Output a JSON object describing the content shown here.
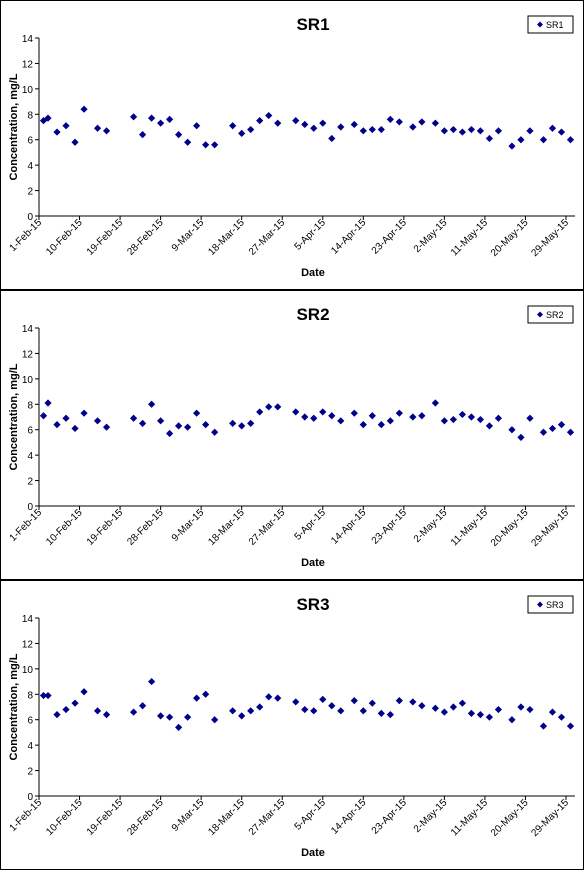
{
  "chart_data": [
    {
      "type": "scatter",
      "title": "SR1",
      "xlabel": "Date",
      "ylabel": "Concentration, mg/L",
      "ylim": [
        0,
        14
      ],
      "yticks": [
        0,
        2,
        4,
        6,
        8,
        10,
        12,
        14
      ],
      "xlim": [
        "2015-02-01",
        "2015-05-31"
      ],
      "xtick_labels": [
        "1-Feb-15",
        "10-Feb-15",
        "19-Feb-15",
        "28-Feb-15",
        "9-Mar-15",
        "18-Mar-15",
        "27-Mar-15",
        "5-Apr-15",
        "14-Apr-15",
        "23-Apr-15",
        "2-May-15",
        "11-May-15",
        "20-May-15",
        "29-May-15"
      ],
      "xtick_dates": [
        "2015-02-01",
        "2015-02-10",
        "2015-02-19",
        "2015-02-28",
        "2015-03-09",
        "2015-03-18",
        "2015-03-27",
        "2015-04-05",
        "2015-04-14",
        "2015-04-23",
        "2015-05-02",
        "2015-05-11",
        "2015-05-20",
        "2015-05-29"
      ],
      "legend": "top-right",
      "marker_color": "#00008B",
      "series": [
        {
          "name": "SR1",
          "x": [
            "2015-02-02",
            "2015-02-03",
            "2015-02-05",
            "2015-02-07",
            "2015-02-09",
            "2015-02-11",
            "2015-02-14",
            "2015-02-16",
            "2015-02-22",
            "2015-02-24",
            "2015-02-26",
            "2015-02-28",
            "2015-03-02",
            "2015-03-04",
            "2015-03-06",
            "2015-03-08",
            "2015-03-10",
            "2015-03-12",
            "2015-03-16",
            "2015-03-18",
            "2015-03-20",
            "2015-03-22",
            "2015-03-24",
            "2015-03-26",
            "2015-03-30",
            "2015-04-01",
            "2015-04-03",
            "2015-04-05",
            "2015-04-07",
            "2015-04-09",
            "2015-04-12",
            "2015-04-14",
            "2015-04-16",
            "2015-04-18",
            "2015-04-20",
            "2015-04-22",
            "2015-04-25",
            "2015-04-27",
            "2015-04-30",
            "2015-05-02",
            "2015-05-04",
            "2015-05-06",
            "2015-05-08",
            "2015-05-10",
            "2015-05-12",
            "2015-05-14",
            "2015-05-17",
            "2015-05-19",
            "2015-05-21",
            "2015-05-24",
            "2015-05-26",
            "2015-05-28",
            "2015-05-30"
          ],
          "values": [
            7.5,
            7.7,
            6.6,
            7.1,
            5.8,
            8.4,
            6.9,
            6.7,
            7.8,
            6.4,
            7.7,
            7.3,
            7.6,
            6.4,
            5.8,
            7.1,
            5.6,
            5.6,
            7.1,
            6.5,
            6.8,
            7.5,
            7.9,
            7.3,
            7.5,
            7.2,
            6.9,
            7.3,
            6.1,
            7.0,
            7.2,
            6.7,
            6.8,
            6.8,
            7.6,
            7.4,
            7.0,
            7.4,
            7.3,
            6.7,
            6.8,
            6.6,
            6.8,
            6.7,
            6.1,
            6.7,
            5.5,
            6.0,
            6.7,
            6.0,
            6.9,
            6.6,
            6.0
          ]
        }
      ]
    },
    {
      "type": "scatter",
      "title": "SR2",
      "xlabel": "Date",
      "ylabel": "Concentration, mg/L",
      "ylim": [
        0,
        14
      ],
      "yticks": [
        0,
        2,
        4,
        6,
        8,
        10,
        12,
        14
      ],
      "xlim": [
        "2015-02-01",
        "2015-05-31"
      ],
      "xtick_labels": [
        "1-Feb-15",
        "10-Feb-15",
        "19-Feb-15",
        "28-Feb-15",
        "9-Mar-15",
        "18-Mar-15",
        "27-Mar-15",
        "5-Apr-15",
        "14-Apr-15",
        "23-Apr-15",
        "2-May-15",
        "11-May-15",
        "20-May-15",
        "29-May-15"
      ],
      "xtick_dates": [
        "2015-02-01",
        "2015-02-10",
        "2015-02-19",
        "2015-02-28",
        "2015-03-09",
        "2015-03-18",
        "2015-03-27",
        "2015-04-05",
        "2015-04-14",
        "2015-04-23",
        "2015-05-02",
        "2015-05-11",
        "2015-05-20",
        "2015-05-29"
      ],
      "legend": "top-right",
      "marker_color": "#00008B",
      "series": [
        {
          "name": "SR2",
          "x": [
            "2015-02-02",
            "2015-02-03",
            "2015-02-05",
            "2015-02-07",
            "2015-02-09",
            "2015-02-11",
            "2015-02-14",
            "2015-02-16",
            "2015-02-22",
            "2015-02-24",
            "2015-02-26",
            "2015-02-28",
            "2015-03-02",
            "2015-03-04",
            "2015-03-06",
            "2015-03-08",
            "2015-03-10",
            "2015-03-12",
            "2015-03-16",
            "2015-03-18",
            "2015-03-20",
            "2015-03-22",
            "2015-03-24",
            "2015-03-26",
            "2015-03-30",
            "2015-04-01",
            "2015-04-03",
            "2015-04-05",
            "2015-04-07",
            "2015-04-09",
            "2015-04-12",
            "2015-04-14",
            "2015-04-16",
            "2015-04-18",
            "2015-04-20",
            "2015-04-22",
            "2015-04-25",
            "2015-04-27",
            "2015-04-30",
            "2015-05-02",
            "2015-05-04",
            "2015-05-06",
            "2015-05-08",
            "2015-05-10",
            "2015-05-12",
            "2015-05-14",
            "2015-05-17",
            "2015-05-19",
            "2015-05-21",
            "2015-05-24",
            "2015-05-26",
            "2015-05-28",
            "2015-05-30"
          ],
          "values": [
            7.1,
            8.1,
            6.4,
            6.9,
            6.1,
            7.3,
            6.7,
            6.2,
            6.9,
            6.5,
            8.0,
            6.7,
            5.7,
            6.3,
            6.2,
            7.3,
            6.4,
            5.8,
            6.5,
            6.3,
            6.5,
            7.4,
            7.8,
            7.8,
            7.4,
            7.0,
            6.9,
            7.4,
            7.1,
            6.7,
            7.3,
            6.4,
            7.1,
            6.4,
            6.7,
            7.3,
            7.0,
            7.1,
            8.1,
            6.7,
            6.8,
            7.2,
            7.0,
            6.8,
            6.3,
            6.9,
            6.0,
            5.4,
            6.9,
            5.8,
            6.1,
            6.4,
            5.8
          ]
        }
      ]
    },
    {
      "type": "scatter",
      "title": "SR3",
      "xlabel": "Date",
      "ylabel": "Concentration, mg/L",
      "ylim": [
        0,
        14
      ],
      "yticks": [
        0,
        2,
        4,
        6,
        8,
        10,
        12,
        14
      ],
      "xlim": [
        "2015-02-01",
        "2015-05-31"
      ],
      "xtick_labels": [
        "1-Feb-15",
        "10-Feb-15",
        "19-Feb-15",
        "28-Feb-15",
        "9-Mar-15",
        "18-Mar-15",
        "27-Mar-15",
        "5-Apr-15",
        "14-Apr-15",
        "23-Apr-15",
        "2-May-15",
        "11-May-15",
        "20-May-15",
        "29-May-15"
      ],
      "xtick_dates": [
        "2015-02-01",
        "2015-02-10",
        "2015-02-19",
        "2015-02-28",
        "2015-03-09",
        "2015-03-18",
        "2015-03-27",
        "2015-04-05",
        "2015-04-14",
        "2015-04-23",
        "2015-05-02",
        "2015-05-11",
        "2015-05-20",
        "2015-05-29"
      ],
      "legend": "top-right",
      "marker_color": "#00008B",
      "series": [
        {
          "name": "SR3",
          "x": [
            "2015-02-02",
            "2015-02-03",
            "2015-02-05",
            "2015-02-07",
            "2015-02-09",
            "2015-02-11",
            "2015-02-14",
            "2015-02-16",
            "2015-02-22",
            "2015-02-24",
            "2015-02-26",
            "2015-02-28",
            "2015-03-02",
            "2015-03-04",
            "2015-03-06",
            "2015-03-08",
            "2015-03-10",
            "2015-03-12",
            "2015-03-16",
            "2015-03-18",
            "2015-03-20",
            "2015-03-22",
            "2015-03-24",
            "2015-03-26",
            "2015-03-30",
            "2015-04-01",
            "2015-04-03",
            "2015-04-05",
            "2015-04-07",
            "2015-04-09",
            "2015-04-12",
            "2015-04-14",
            "2015-04-16",
            "2015-04-18",
            "2015-04-20",
            "2015-04-22",
            "2015-04-25",
            "2015-04-27",
            "2015-04-30",
            "2015-05-02",
            "2015-05-04",
            "2015-05-06",
            "2015-05-08",
            "2015-05-10",
            "2015-05-12",
            "2015-05-14",
            "2015-05-17",
            "2015-05-19",
            "2015-05-21",
            "2015-05-24",
            "2015-05-26",
            "2015-05-28",
            "2015-05-30"
          ],
          "values": [
            7.9,
            7.9,
            6.4,
            6.8,
            7.3,
            8.2,
            6.7,
            6.4,
            6.6,
            7.1,
            9.0,
            6.3,
            6.2,
            5.4,
            6.2,
            7.7,
            8.0,
            6.0,
            6.7,
            6.3,
            6.7,
            7.0,
            7.8,
            7.7,
            7.4,
            6.8,
            6.7,
            7.6,
            7.1,
            6.7,
            7.5,
            6.7,
            7.3,
            6.5,
            6.4,
            7.5,
            7.4,
            7.1,
            6.9,
            6.6,
            7.0,
            7.3,
            6.5,
            6.4,
            6.2,
            6.8,
            6.0,
            7.0,
            6.8,
            5.5,
            6.6,
            6.2,
            5.5
          ]
        }
      ]
    }
  ]
}
